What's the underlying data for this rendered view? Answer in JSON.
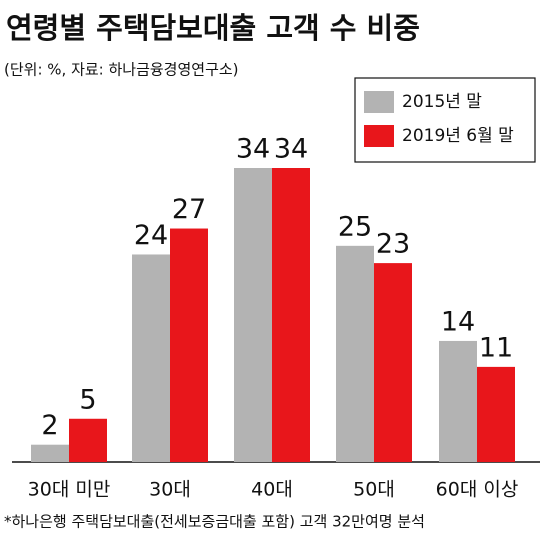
{
  "chart_data": {
    "type": "bar",
    "title": "연령별 주택담보대출 고객 수 비중",
    "subtitle": "(단위: %, 자료: 하나금융경영연구소)",
    "footnote": "*하나은행 주택담보대출(전세보증금대출 포함) 고객 32만여명 분석",
    "categories": [
      "30대 미만",
      "30대",
      "40대",
      "50대",
      "60대 이상"
    ],
    "series": [
      {
        "name": "2015년 말",
        "color": "#b3b3b3",
        "values": [
          2,
          24,
          34,
          25,
          14
        ]
      },
      {
        "name": "2019년 6월 말",
        "color": "#e8161b",
        "values": [
          5,
          27,
          34,
          23,
          11
        ]
      }
    ],
    "ylim": [
      0,
      34
    ]
  }
}
